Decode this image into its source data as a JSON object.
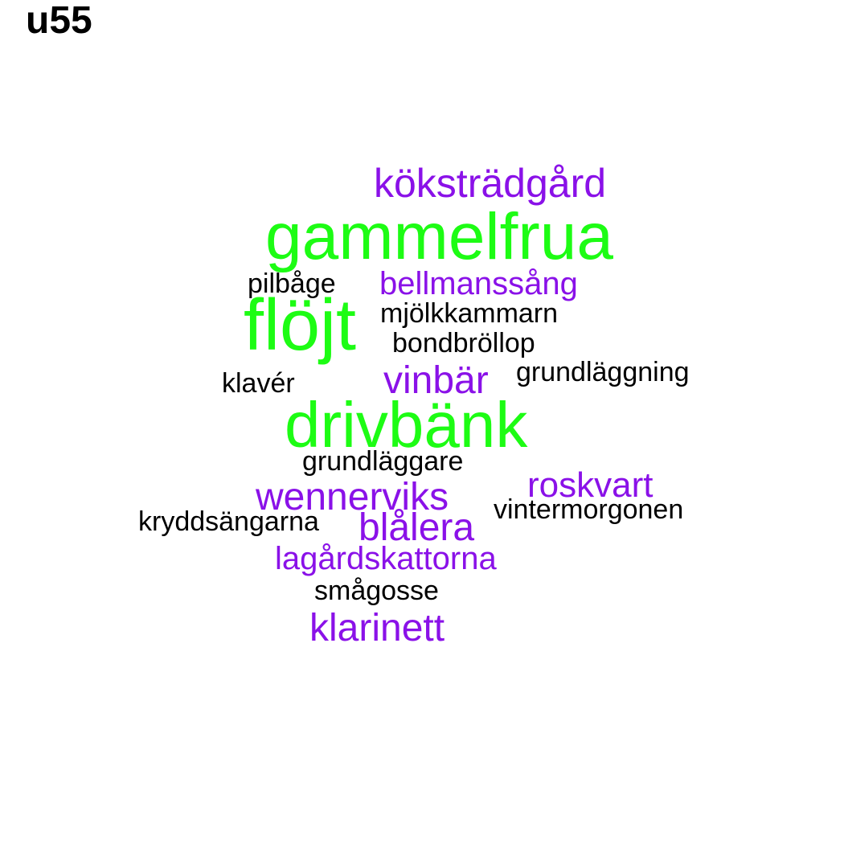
{
  "title": "u55",
  "colors": {
    "green": "#1dfc14",
    "purple": "#8a11e8",
    "black": "#000000"
  },
  "words": [
    {
      "text": "köksträdgård",
      "color": "purple"
    },
    {
      "text": "gammelfrua",
      "color": "green"
    },
    {
      "text": "pilbåge",
      "color": "black"
    },
    {
      "text": "bellmanssång",
      "color": "purple"
    },
    {
      "text": "flöjt",
      "color": "green"
    },
    {
      "text": "mjölkkammarn",
      "color": "black"
    },
    {
      "text": "bondbröllop",
      "color": "black"
    },
    {
      "text": "grundläggning",
      "color": "black"
    },
    {
      "text": "vinbär",
      "color": "purple"
    },
    {
      "text": "klavér",
      "color": "black"
    },
    {
      "text": "drivbänk",
      "color": "green"
    },
    {
      "text": "grundläggare",
      "color": "black"
    },
    {
      "text": "roskvart",
      "color": "purple"
    },
    {
      "text": "wennerviks",
      "color": "purple"
    },
    {
      "text": "vintermorgonen",
      "color": "black"
    },
    {
      "text": "kryddsängarna",
      "color": "black"
    },
    {
      "text": "blålera",
      "color": "purple"
    },
    {
      "text": "lagårdskattorna",
      "color": "purple"
    },
    {
      "text": "smågosse",
      "color": "black"
    },
    {
      "text": "klarinett",
      "color": "purple"
    }
  ]
}
